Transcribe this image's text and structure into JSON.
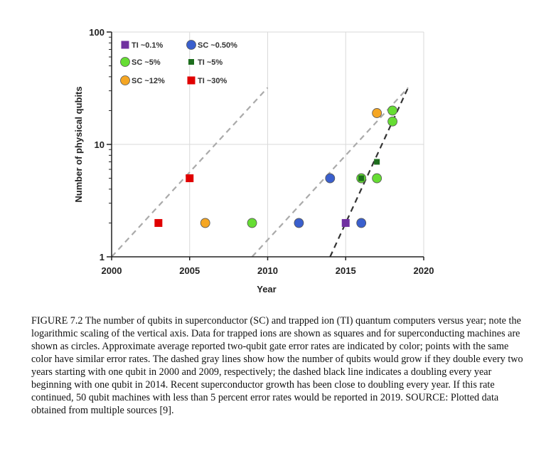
{
  "chart_data": {
    "type": "scatter",
    "xlabel": "Year",
    "ylabel": "Number of physical qubits",
    "xlim": [
      2000,
      2020
    ],
    "ylim": [
      1,
      100
    ],
    "yscale": "log",
    "x_ticks": [
      "2000",
      "2005",
      "2010",
      "2015",
      "2020"
    ],
    "y_ticks": [
      "1",
      "10",
      "100"
    ],
    "grid": true,
    "legend_position": "top-left",
    "series": [
      {
        "name": "TI ~0.1%",
        "marker": "square",
        "color": "#7030a0",
        "points": [
          [
            2015,
            2
          ]
        ]
      },
      {
        "name": "SC ~0.50%",
        "marker": "circle",
        "color": "#3a5fcd",
        "points": [
          [
            2012,
            2
          ],
          [
            2014,
            5
          ],
          [
            2016,
            2
          ]
        ]
      },
      {
        "name": "SC ~5%",
        "marker": "circle",
        "color": "#66dd33",
        "points": [
          [
            2009,
            2
          ],
          [
            2016,
            5
          ],
          [
            2017,
            5
          ],
          [
            2018,
            16
          ],
          [
            2018,
            20
          ]
        ]
      },
      {
        "name": "TI ~5%",
        "marker": "square-small",
        "color": "#1e6e1e",
        "points": [
          [
            2016,
            5
          ],
          [
            2017,
            7
          ]
        ]
      },
      {
        "name": "SC ~12%",
        "marker": "circle",
        "color": "#f5a623",
        "points": [
          [
            2006,
            2
          ],
          [
            2017,
            19
          ]
        ]
      },
      {
        "name": "TI ~30%",
        "marker": "square",
        "color": "#e00000",
        "points": [
          [
            2003,
            2
          ],
          [
            2005,
            5
          ]
        ]
      }
    ],
    "trend_lines": [
      {
        "style": "dashed-gray",
        "color": "#aaaaaa",
        "start": [
          2000,
          1
        ],
        "end": [
          2010,
          32
        ]
      },
      {
        "style": "dashed-gray",
        "color": "#aaaaaa",
        "start": [
          2009,
          1
        ],
        "end": [
          2019,
          32
        ]
      },
      {
        "style": "dashed-black",
        "color": "#333333",
        "start": [
          2014,
          1
        ],
        "end": [
          2019,
          32
        ]
      }
    ]
  },
  "caption": "FIGURE 7.2 The number of qubits in superconductor (SC) and trapped ion (TI) quantum computers versus year; note the logarithmic scaling of the vertical axis. Data for trapped ions are shown as squares and for superconducting machines are shown as circles. Approximate average reported two-qubit gate error rates are indicated by color; points with the same color have similar error rates. The dashed gray lines show how the number of qubits would grow if they double every two years starting with one qubit in 2000 and 2009, respectively; the dashed black line indicates a doubling every year beginning with one qubit in 2014. Recent superconductor growth has been close to doubling every year. If this rate continued, 50 qubit machines with less than 5 percent error rates would be reported in 2019. SOURCE: Plotted data obtained from multiple sources [9]."
}
